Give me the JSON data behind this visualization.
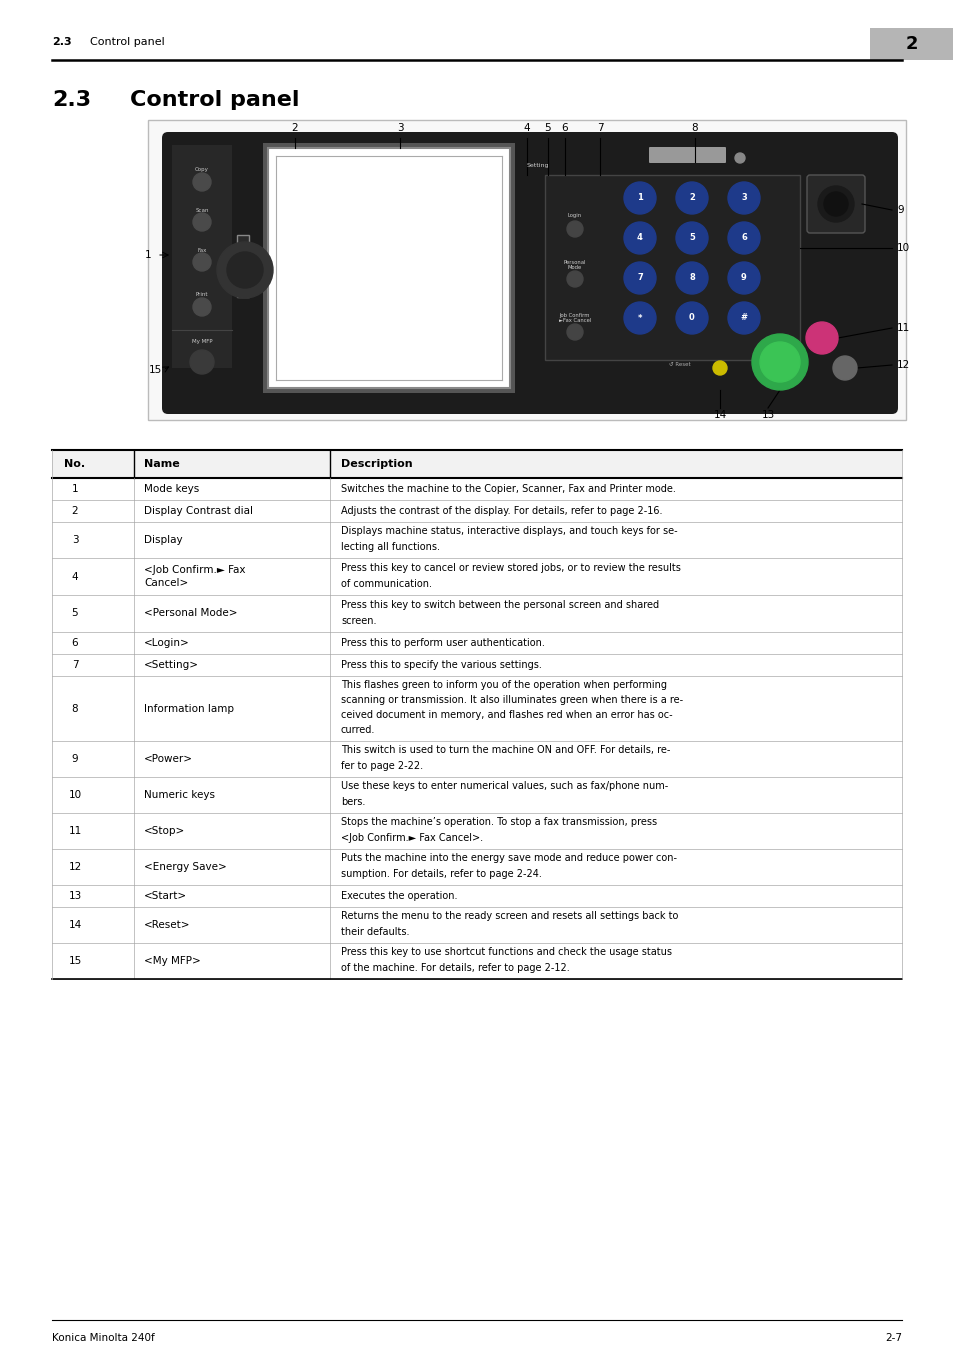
{
  "header_left_num": "2.3",
  "header_left_text": "Control panel",
  "header_number": "2",
  "section_num": "2.3",
  "section_title": "Control panel",
  "footer_left": "Konica Minolta 240f",
  "footer_right": "2-7",
  "table_headers": [
    "No.",
    "Name",
    "Description"
  ],
  "table_rows": [
    [
      "1",
      "Mode keys",
      "Switches the machine to the Copier, Scanner, Fax and Printer mode."
    ],
    [
      "2",
      "Display Contrast dial",
      "Adjusts the contrast of the display. For details, refer to page 2-16."
    ],
    [
      "3",
      "Display",
      "Displays machine status, interactive displays, and touch keys for se-\nlecting all functions."
    ],
    [
      "4",
      "<Job Confirm.► Fax\nCancel>",
      "Press this key to cancel or review stored jobs, or to review the results\nof communication."
    ],
    [
      "5",
      "<Personal Mode>",
      "Press this key to switch between the personal screen and shared\nscreen."
    ],
    [
      "6",
      "<Login>",
      "Press this to perform user authentication."
    ],
    [
      "7",
      "<Setting>",
      "Press this to specify the various settings."
    ],
    [
      "8",
      "Information lamp",
      "This flashes green to inform you of the operation when performing\nscanning or transmission. It also illuminates green when there is a re-\nceived document in memory, and flashes red when an error has oc-\ncurred."
    ],
    [
      "9",
      "<Power>",
      "This switch is used to turn the machine ON and OFF. For details, re-\nfer to page 2-22."
    ],
    [
      "10",
      "Numeric keys",
      "Use these keys to enter numerical values, such as fax/phone num-\nbers."
    ],
    [
      "11",
      "<Stop>",
      "Stops the machine’s operation. To stop a fax transmission, press\n<Job Confirm.► Fax Cancel>."
    ],
    [
      "12",
      "<Energy Save>",
      "Puts the machine into the energy save mode and reduce power con-\nsumption. For details, refer to page 2-24."
    ],
    [
      "13",
      "<Start>",
      "Executes the operation."
    ],
    [
      "14",
      "<Reset>",
      "Returns the menu to the ready screen and resets all settings back to\ntheir defaults."
    ],
    [
      "15",
      "<My MFP>",
      "Press this key to use shortcut functions and check the usage status\nof the machine. For details, refer to page 2-12."
    ]
  ],
  "bg_color": "#ffffff"
}
